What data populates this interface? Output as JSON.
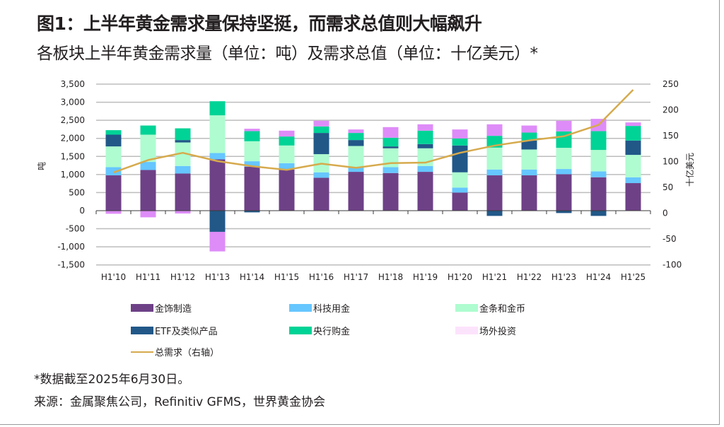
{
  "header": {
    "title": "图1：上半年黄金需求量保持坚挺，而需求总值则大幅飙升",
    "subtitle": "各板块上半年黄金需求量（单位：吨）及需求总值（单位：十亿美元）*"
  },
  "footer": {
    "footnote": "*数据截至2025年6月30日。",
    "source": "来源：金属聚焦公司，Refinitiv GFMS，世界黄金协会"
  },
  "chart_data": {
    "type": "bar",
    "stacked": true,
    "title": "各板块上半年黄金需求量（单位：吨）及需求总值（单位：十亿美元）*",
    "xlabel": "",
    "ylabel": "吨",
    "y2label": "十亿美元",
    "ylim": [
      -1500,
      3500
    ],
    "y2lim": [
      -100,
      250
    ],
    "yticks": [
      "3,500",
      "3,000",
      "2,500",
      "2,000",
      "1,500",
      "1,000",
      "500",
      "0",
      "-500",
      "-1,000",
      "-1,500"
    ],
    "ytick_values": [
      3500,
      3000,
      2500,
      2000,
      1500,
      1000,
      500,
      0,
      -500,
      -1000,
      -1500
    ],
    "y2ticks": [
      "250",
      "200",
      "150",
      "100",
      "50",
      "0",
      "-50",
      "-100"
    ],
    "y2tick_values": [
      250,
      200,
      150,
      100,
      50,
      0,
      -50,
      -100
    ],
    "grid": true,
    "legend_position": "bottom",
    "categories": [
      "H1'10",
      "H1'11",
      "H1'12",
      "H1'13",
      "H1'14",
      "H1'15",
      "H1'16",
      "H1'17",
      "H1'18",
      "H1'19",
      "H1'20",
      "H1'21",
      "H1'22",
      "H1'23",
      "H1'24",
      "H1'25"
    ],
    "series": [
      {
        "name": "金饰制造",
        "color": "#6e4187",
        "axis": "left",
        "kind": "bar",
        "values": [
          977,
          1125,
          1027,
          1418,
          1217,
          1139,
          910,
          1074,
          1041,
          1074,
          500,
          977,
          977,
          1008,
          924,
          762
        ]
      },
      {
        "name": "科技用金",
        "color": "#66c6ff",
        "axis": "left",
        "kind": "bar",
        "values": [
          226,
          223,
          209,
          176,
          150,
          175,
          151,
          129,
          162,
          162,
          137,
          162,
          162,
          144,
          162,
          162
        ]
      },
      {
        "name": "金条和金币",
        "color": "#aefcd0",
        "axis": "left",
        "kind": "bar",
        "values": [
          574,
          754,
          651,
          1043,
          553,
          489,
          502,
          586,
          522,
          489,
          424,
          605,
          553,
          586,
          594,
          619
        ]
      },
      {
        "name": "ETF及类似产品",
        "color": "#215888",
        "axis": "left",
        "kind": "bar",
        "values": [
          325,
          0,
          66,
          -586,
          -47,
          0,
          586,
          164,
          52,
          117,
          742,
          -145,
          248,
          -66,
          -145,
          397
        ]
      },
      {
        "name": "央行购金",
        "color": "#00d396",
        "axis": "left",
        "kind": "bar",
        "values": [
          125,
          253,
          324,
          390,
          279,
          248,
          181,
          196,
          241,
          371,
          195,
          326,
          220,
          455,
          519,
          404
        ]
      },
      {
        "name": "场外投资",
        "color": "#de8cf8",
        "legend_color": "#fce3fc",
        "axis": "left",
        "kind": "bar",
        "values": [
          -86,
          -184,
          -78,
          -541,
          67,
          162,
          156,
          97,
          293,
          176,
          248,
          319,
          195,
          293,
          340,
          97
        ]
      },
      {
        "name": "总需求（右轴）",
        "color": "#d6aa4d",
        "axis": "right",
        "kind": "line",
        "values": [
          79,
          103,
          117,
          101,
          91,
          84,
          96,
          88,
          97,
          98,
          117,
          131,
          141,
          149,
          171,
          239
        ]
      }
    ]
  },
  "legend": {
    "items": [
      {
        "label": "金饰制造",
        "color": "#6e4187",
        "kind": "box"
      },
      {
        "label": "科技用金",
        "color": "#66c6ff",
        "kind": "box"
      },
      {
        "label": "金条和金币",
        "color": "#aefcd0",
        "kind": "box"
      },
      {
        "label": "ETF及类似产品",
        "color": "#215888",
        "kind": "box"
      },
      {
        "label": "央行购金",
        "color": "#00d396",
        "kind": "box"
      },
      {
        "label": "场外投资",
        "color": "#fce3fc",
        "kind": "box"
      },
      {
        "label": "总需求（右轴）",
        "color": "#d6aa4d",
        "kind": "line"
      }
    ]
  }
}
